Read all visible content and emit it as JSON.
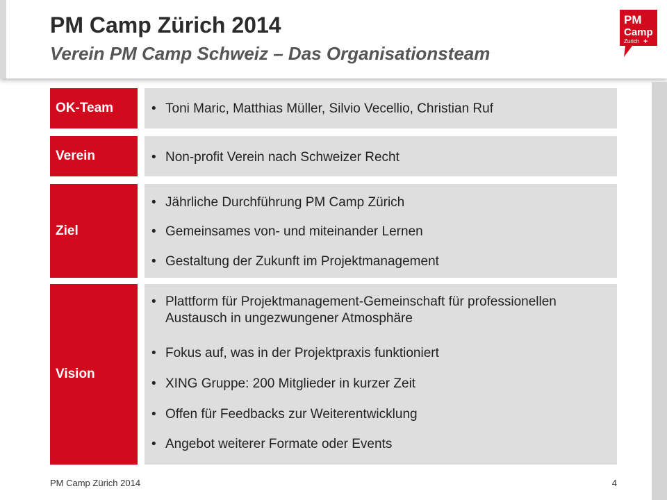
{
  "header": {
    "title": "PM Camp Zürich 2014",
    "subtitle": "Verein PM Camp Schweiz – Das Organisationsteam"
  },
  "logo": {
    "line1": "PM",
    "line2": "Camp",
    "line3": "Zurich",
    "plus": "+",
    "color": "#d20a1e"
  },
  "sections": [
    {
      "label": "OK-Team",
      "items": [
        "Toni Maric, Matthias Müller, Silvio Vecellio, Christian Ruf"
      ]
    },
    {
      "label": "Verein",
      "items": [
        "Non-profit Verein nach Schweizer Recht"
      ]
    },
    {
      "label": "Ziel",
      "items": [
        "Jährliche Durchführung PM Camp Zürich",
        "Gemeinsames von- und miteinander Lernen",
        "Gestaltung der Zukunft im Projektmanagement"
      ]
    },
    {
      "label": "Vision",
      "items": [
        "Plattform für Projektmanagement-Gemeinschaft für professionellen Austausch in ungezwungener Atmosphäre",
        "Fokus auf, was in der Projektpraxis funktioniert",
        "XING Gruppe: 200 Mitglieder in kurzer Zeit",
        "Offen für Feedbacks zur Weiterentwicklung",
        "Angebot weiterer Formate oder Events"
      ]
    }
  ],
  "footer": {
    "left": "PM Camp Zürich 2014",
    "page": "4"
  },
  "colors": {
    "accent": "#d20a1e",
    "box": "#dedede"
  }
}
